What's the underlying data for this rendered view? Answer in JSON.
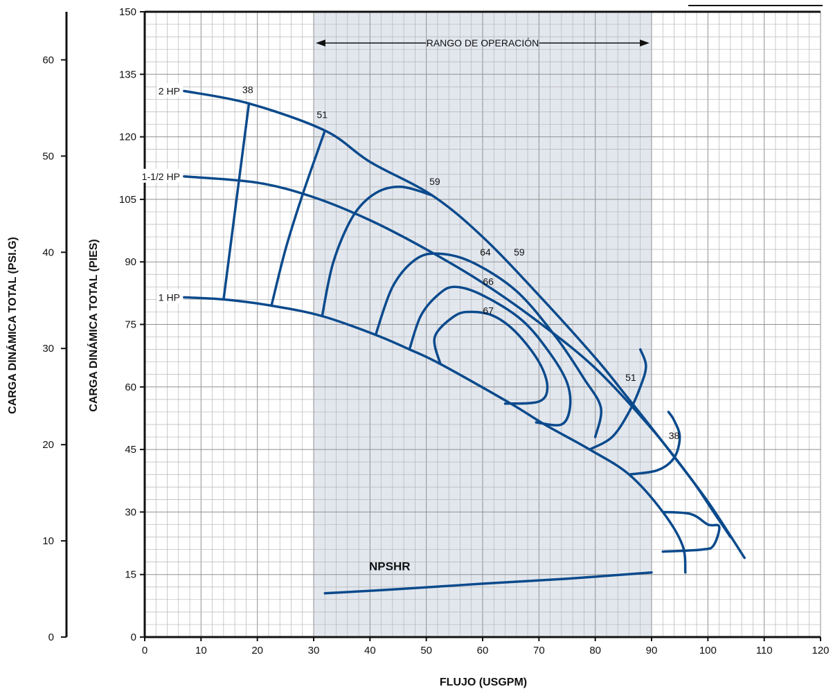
{
  "chart_data": {
    "type": "line",
    "xlabel": "FLUJO (USGPM)",
    "ylabel": "CARGA DINÁMICA TOTAL (PIES)",
    "ylabel_secondary": "CARGA DINÁMICA TOTAL (PSI.G)",
    "xlim": [
      0,
      120
    ],
    "ylim": [
      0,
      150
    ],
    "ylim_secondary": [
      0,
      65
    ],
    "x_ticks": [
      "0",
      "10",
      "20",
      "30",
      "40",
      "50",
      "60",
      "70",
      "80",
      "90",
      "100",
      "110",
      "120"
    ],
    "y_ticks": [
      "0",
      "15",
      "30",
      "45",
      "60",
      "75",
      "90",
      "105",
      "120",
      "135",
      "150"
    ],
    "y2_ticks": [
      "0",
      "10",
      "20",
      "30",
      "40",
      "50",
      "60"
    ],
    "grid": true,
    "operating_range": {
      "label": "RANGO DE OPERACIÓN",
      "x": [
        30,
        90
      ]
    },
    "colors": {
      "curve": "#0b4a8c",
      "range_fill": "#e2e7ee",
      "grid": "#b4b4b4"
    },
    "hp_curves": [
      {
        "name": "2 HP",
        "points": [
          [
            7,
            131
          ],
          [
            18.5,
            128
          ],
          [
            32,
            121.5
          ],
          [
            40,
            114
          ],
          [
            51,
            106
          ],
          [
            60,
            96
          ],
          [
            70,
            82
          ],
          [
            80,
            67
          ],
          [
            86,
            57
          ],
          [
            93,
            45
          ],
          [
            100,
            32.5
          ],
          [
            106.5,
            19
          ]
        ]
      },
      {
        "name": "1-1/2 HP",
        "points": [
          [
            7,
            110.5
          ],
          [
            20,
            109
          ],
          [
            30,
            105.5
          ],
          [
            40,
            100
          ],
          [
            50,
            93
          ],
          [
            60,
            85
          ],
          [
            70,
            75.5
          ],
          [
            80,
            64.5
          ],
          [
            90,
            50
          ],
          [
            97,
            38
          ],
          [
            101,
            30
          ],
          [
            104,
            24
          ]
        ]
      },
      {
        "name": "1 HP",
        "points": [
          [
            7,
            81.5
          ],
          [
            14,
            81
          ],
          [
            22.5,
            79.5
          ],
          [
            31.5,
            77
          ],
          [
            41,
            72.5
          ],
          [
            47,
            69
          ],
          [
            52.5,
            65.5
          ],
          [
            65,
            56
          ],
          [
            71,
            51
          ],
          [
            79,
            45
          ],
          [
            86,
            39
          ],
          [
            92,
            30
          ],
          [
            95.5,
            22
          ],
          [
            96,
            15.5
          ]
        ]
      }
    ],
    "efficiency_curves": [
      {
        "label": "38",
        "label_pos": [
          18.3,
          130.5
        ],
        "points": [
          [
            14,
            81
          ],
          [
            18.5,
            128
          ]
        ]
      },
      {
        "label": "51",
        "label_pos": [
          31.5,
          124.5
        ],
        "points": [
          [
            22.5,
            79.5
          ],
          [
            25,
            93
          ],
          [
            28,
            106
          ],
          [
            32,
            121.5
          ]
        ]
      },
      {
        "label": "59",
        "label_pos": [
          51.5,
          108.5
        ],
        "points": [
          [
            31.5,
            77
          ],
          [
            33.5,
            90
          ],
          [
            37,
            101
          ],
          [
            41,
            106.5
          ],
          [
            45.5,
            108
          ],
          [
            51,
            106
          ]
        ]
      },
      {
        "label": "64",
        "label_pos": [
          60.5,
          91.5
        ],
        "points": [
          [
            41,
            72.5
          ],
          [
            44,
            84
          ],
          [
            48,
            90.5
          ],
          [
            52,
            92
          ],
          [
            58,
            90
          ],
          [
            66,
            83
          ],
          [
            73,
            72
          ],
          [
            78,
            62
          ],
          [
            81,
            55
          ],
          [
            80,
            48
          ]
        ]
      },
      {
        "label": "66",
        "label_pos": [
          61,
          84.5
        ],
        "points": [
          [
            47,
            69
          ],
          [
            49,
            77
          ],
          [
            52,
            82
          ],
          [
            55,
            84
          ],
          [
            60,
            82
          ],
          [
            67,
            76
          ],
          [
            72,
            68
          ],
          [
            75,
            61
          ],
          [
            75.5,
            55
          ],
          [
            74,
            51
          ],
          [
            69.5,
            51.5
          ]
        ]
      },
      {
        "label": "67",
        "label_pos": [
          61,
          77.5
        ],
        "points": [
          [
            52.5,
            65.5
          ],
          [
            51.5,
            72
          ],
          [
            55,
            77
          ],
          [
            58,
            78
          ],
          [
            62,
            77
          ],
          [
            66,
            73
          ],
          [
            70,
            66
          ],
          [
            71.5,
            60
          ],
          [
            70,
            56.5
          ],
          [
            64,
            56
          ]
        ]
      },
      {
        "label": "59",
        "label_pos": [
          66.5,
          91.5
        ],
        "points": [
          [
            79,
            45
          ],
          [
            83,
            48
          ],
          [
            86,
            54
          ],
          [
            88,
            60
          ],
          [
            89,
            65
          ],
          [
            88,
            69
          ]
        ]
      },
      {
        "label": "51",
        "label_pos": [
          86.3,
          61.5
        ],
        "points": [
          [
            86,
            39
          ],
          [
            91,
            40
          ],
          [
            94,
            43
          ],
          [
            95,
            48
          ],
          [
            94,
            52
          ],
          [
            93,
            54
          ]
        ]
      },
      {
        "label": "38",
        "label_pos": [
          94,
          47.5
        ],
        "points": [
          [
            92,
            30
          ],
          [
            97,
            29.5
          ],
          [
            100,
            27
          ],
          [
            102,
            26.5
          ],
          [
            101,
            22
          ],
          [
            99,
            21
          ],
          [
            92,
            20.5
          ]
        ]
      }
    ],
    "npshr": {
      "label": "NPSHR",
      "points": [
        [
          32,
          10.5
        ],
        [
          45,
          11.5
        ],
        [
          60,
          12.8
        ],
        [
          75,
          14
        ],
        [
          90,
          15.5
        ]
      ]
    }
  }
}
